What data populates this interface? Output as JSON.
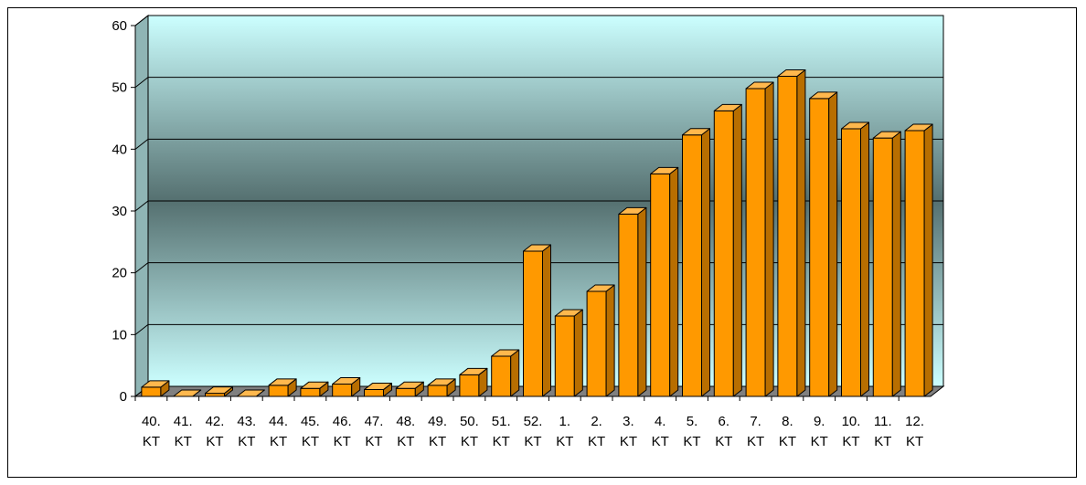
{
  "chart_data": {
    "type": "bar",
    "title": "",
    "xlabel": "",
    "ylabel": "",
    "ylim": [
      0,
      60
    ],
    "yticks": [
      0,
      10,
      20,
      30,
      40,
      50,
      60
    ],
    "grid": true,
    "legend": "none",
    "categories": [
      "40. KT",
      "41. KT",
      "42. KT",
      "43. KT",
      "44. KT",
      "45. KT",
      "46. KT",
      "47. KT",
      "48. KT",
      "49. KT",
      "50. KT",
      "51. KT",
      "52. KT",
      "1. KT",
      "2. KT",
      "3. KT",
      "4. KT",
      "5. KT",
      "6. KT",
      "7. KT",
      "8. KT",
      "9. KT",
      "10. KT",
      "11. KT",
      "12. KT"
    ],
    "values": [
      1.5,
      0,
      0.5,
      0,
      1.8,
      1.3,
      2.0,
      1.1,
      1.3,
      1.8,
      3.5,
      6.5,
      23.5,
      13,
      17,
      29.5,
      36,
      42.3,
      46.2,
      49.8,
      51.8,
      48.2,
      43.3,
      41.8,
      43
    ],
    "colors": {
      "bar_front": "#ff9900",
      "bar_top": "#ffb84d",
      "bar_side": "#b86e00",
      "bar_stroke": "#000000",
      "wall_light": "#ccffff",
      "wall_dark": "#557070",
      "floor": "#808080"
    }
  }
}
